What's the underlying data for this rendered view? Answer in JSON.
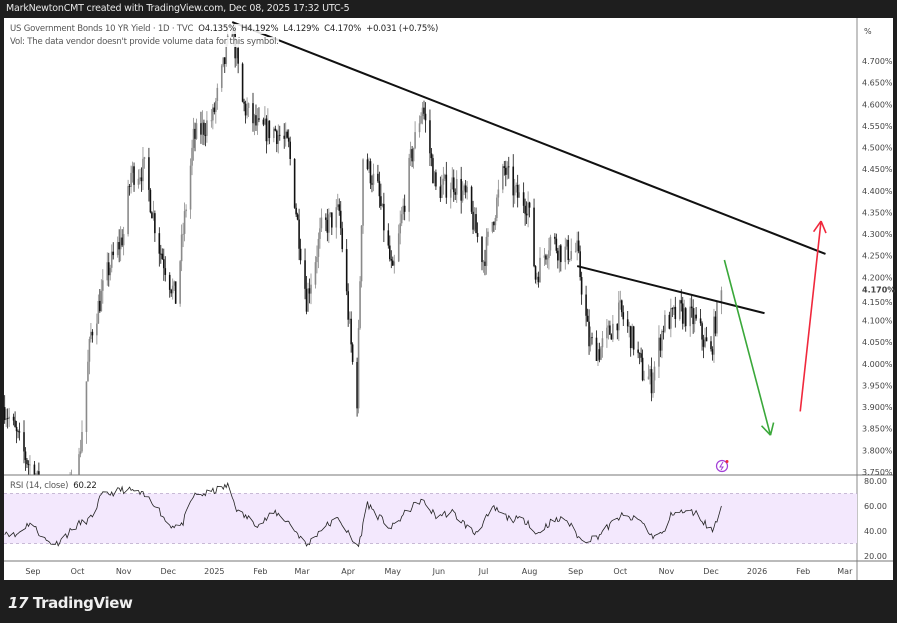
{
  "header": {
    "attribution": "MarkNewtonCMT created with TradingView.com, Dec 08, 2025 17:32 UTC-5"
  },
  "legend": {
    "symbol": "US Government Bonds 10 YR Yield · 1D · TVC",
    "open": "O4.135%",
    "high": "H4.192%",
    "low": "L4.129%",
    "close": "C4.170%",
    "change": "+0.031 (+0.75%)",
    "volume_note": "Vol: The data vendor doesn't provide volume data for this symbol."
  },
  "brand": {
    "name": "TradingView",
    "logo_text": "17"
  },
  "colors": {
    "up_candle": "#8a8a8a",
    "down_candle": "#111111",
    "trendline": "#111111",
    "bear_arrow": "#3aa83a",
    "bull_arrow": "#f0283c",
    "rsi_line": "#222222",
    "rsi_band": "#f3e8fd",
    "event_icon": "#a23fd6"
  },
  "chart_data": [
    {
      "type": "candlestick",
      "title": "US Government Bonds 10 YR Yield · 1D · TVC",
      "y_unit": "%",
      "ylim": [
        3.75,
        4.8
      ],
      "y_ticks": [
        "4.700%",
        "4.650%",
        "4.600%",
        "4.550%",
        "4.500%",
        "4.450%",
        "4.400%",
        "4.350%",
        "4.300%",
        "4.250%",
        "4.200%",
        "4.150%",
        "4.100%",
        "4.050%",
        "4.000%",
        "3.950%",
        "3.900%",
        "3.850%",
        "3.800%",
        "3.750%"
      ],
      "last_price_label": "4.170%",
      "axis_unit_label": "%",
      "close_path": [
        [
          "2024-08-13",
          3.9
        ],
        [
          "2024-08-25",
          3.8
        ],
        [
          "2024-09-05",
          3.72
        ],
        [
          "2024-09-16",
          3.62
        ],
        [
          "2024-10-01",
          3.74
        ],
        [
          "2024-10-10",
          4.07
        ],
        [
          "2024-10-22",
          4.22
        ],
        [
          "2024-11-01",
          4.3
        ],
        [
          "2024-11-06",
          4.44
        ],
        [
          "2024-11-15",
          4.45
        ],
        [
          "2024-11-25",
          4.27
        ],
        [
          "2024-12-06",
          4.15
        ],
        [
          "2024-12-18",
          4.52
        ],
        [
          "2024-12-31",
          4.57
        ],
        [
          "2025-01-13",
          4.78
        ],
        [
          "2025-01-20",
          4.6
        ],
        [
          "2025-01-31",
          4.54
        ],
        [
          "2025-02-11",
          4.54
        ],
        [
          "2025-02-20",
          4.5
        ],
        [
          "2025-03-04",
          4.15
        ],
        [
          "2025-03-14",
          4.31
        ],
        [
          "2025-03-26",
          4.35
        ],
        [
          "2025-04-04",
          4.0
        ],
        [
          "2025-04-07",
          3.92
        ],
        [
          "2025-04-11",
          4.48
        ],
        [
          "2025-04-21",
          4.4
        ],
        [
          "2025-05-01",
          4.2
        ],
        [
          "2025-05-13",
          4.47
        ],
        [
          "2025-05-21",
          4.6
        ],
        [
          "2025-05-30",
          4.4
        ],
        [
          "2025-06-11",
          4.42
        ],
        [
          "2025-06-20",
          4.38
        ],
        [
          "2025-07-01",
          4.24
        ],
        [
          "2025-07-15",
          4.45
        ],
        [
          "2025-07-23",
          4.39
        ],
        [
          "2025-07-31",
          4.37
        ],
        [
          "2025-08-05",
          4.2
        ],
        [
          "2025-08-15",
          4.29
        ],
        [
          "2025-08-22",
          4.26
        ],
        [
          "2025-09-02",
          4.26
        ],
        [
          "2025-09-10",
          4.05
        ],
        [
          "2025-09-17",
          4.03
        ],
        [
          "2025-10-01",
          4.12
        ],
        [
          "2025-10-10",
          4.05
        ],
        [
          "2025-10-16",
          3.98
        ],
        [
          "2025-10-22",
          3.96
        ],
        [
          "2025-10-30",
          4.09
        ],
        [
          "2025-11-10",
          4.12
        ],
        [
          "2025-11-20",
          4.1
        ],
        [
          "2025-12-01",
          4.02
        ],
        [
          "2025-12-03",
          4.08
        ],
        [
          "2025-12-08",
          4.17
        ]
      ],
      "trendlines": [
        {
          "from": [
            "2025-01-13",
            4.79
          ],
          "to": [
            "2026-02-16",
            4.254
          ]
        },
        {
          "from": [
            "2025-09-02",
            4.226
          ],
          "to": [
            "2026-01-06",
            4.117
          ]
        }
      ],
      "arrows": [
        {
          "color": "bear",
          "from": [
            "2025-12-10",
            4.24
          ],
          "to": [
            "2026-01-10",
            3.835
          ]
        },
        {
          "color": "bull",
          "from": [
            "2026-01-30",
            3.89
          ],
          "to": [
            "2026-02-13",
            4.33
          ]
        }
      ]
    },
    {
      "type": "line",
      "title": "RSI (14, close)",
      "last_value": "60.22",
      "ylim": [
        20,
        80
      ],
      "band": [
        30,
        70
      ],
      "y_ticks": [
        "80.00",
        "60.00",
        "40.00",
        "20.00"
      ],
      "points": [
        [
          "2024-08-13",
          40
        ],
        [
          "2024-08-20",
          36
        ],
        [
          "2024-08-30",
          47
        ],
        [
          "2024-09-10",
          32
        ],
        [
          "2024-09-17",
          30
        ],
        [
          "2024-10-01",
          45
        ],
        [
          "2024-10-10",
          50
        ],
        [
          "2024-10-17",
          68
        ],
        [
          "2024-10-31",
          73
        ],
        [
          "2024-11-08",
          72
        ],
        [
          "2024-11-15",
          68
        ],
        [
          "2024-11-22",
          62
        ],
        [
          "2024-12-01",
          45
        ],
        [
          "2024-12-10",
          44
        ],
        [
          "2024-12-18",
          68
        ],
        [
          "2024-12-27",
          70
        ],
        [
          "2025-01-10",
          76
        ],
        [
          "2025-01-17",
          55
        ],
        [
          "2025-01-31",
          45
        ],
        [
          "2025-02-11",
          55
        ],
        [
          "2025-02-20",
          47
        ],
        [
          "2025-02-28",
          35
        ],
        [
          "2025-03-04",
          28
        ],
        [
          "2025-03-14",
          42
        ],
        [
          "2025-03-26",
          50
        ],
        [
          "2025-04-04",
          32
        ],
        [
          "2025-04-08",
          28
        ],
        [
          "2025-04-14",
          62
        ],
        [
          "2025-04-21",
          52
        ],
        [
          "2025-04-30",
          42
        ],
        [
          "2025-05-10",
          55
        ],
        [
          "2025-05-20",
          65
        ],
        [
          "2025-05-30",
          52
        ],
        [
          "2025-06-10",
          55
        ],
        [
          "2025-06-25",
          38
        ],
        [
          "2025-07-08",
          58
        ],
        [
          "2025-07-18",
          50
        ],
        [
          "2025-07-31",
          48
        ],
        [
          "2025-08-05",
          37
        ],
        [
          "2025-08-15",
          47
        ],
        [
          "2025-08-25",
          50
        ],
        [
          "2025-09-05",
          32
        ],
        [
          "2025-09-15",
          35
        ],
        [
          "2025-10-01",
          52
        ],
        [
          "2025-10-15",
          48
        ],
        [
          "2025-10-22",
          36
        ],
        [
          "2025-10-30",
          38
        ],
        [
          "2025-11-05",
          55
        ],
        [
          "2025-11-20",
          55
        ],
        [
          "2025-12-02",
          40
        ],
        [
          "2025-12-08",
          60
        ]
      ]
    }
  ],
  "x_axis": {
    "ticks": [
      [
        "2024-09-01",
        "Sep"
      ],
      [
        "2024-10-01",
        "Oct"
      ],
      [
        "2024-11-01",
        "Nov"
      ],
      [
        "2024-12-01",
        "Dec"
      ],
      [
        "2025-01-01",
        "2025"
      ],
      [
        "2025-02-01",
        "Feb"
      ],
      [
        "2025-03-01",
        "Mar"
      ],
      [
        "2025-04-01",
        "Apr"
      ],
      [
        "2025-05-01",
        "May"
      ],
      [
        "2025-06-01",
        "Jun"
      ],
      [
        "2025-07-01",
        "Jul"
      ],
      [
        "2025-08-01",
        "Aug"
      ],
      [
        "2025-09-01",
        "Sep"
      ],
      [
        "2025-10-01",
        "Oct"
      ],
      [
        "2025-11-01",
        "Nov"
      ],
      [
        "2025-12-01",
        "Dec"
      ],
      [
        "2026-01-01",
        "2026"
      ],
      [
        "2026-02-01",
        "Feb"
      ],
      [
        "2026-03-01",
        "Mar"
      ]
    ]
  }
}
